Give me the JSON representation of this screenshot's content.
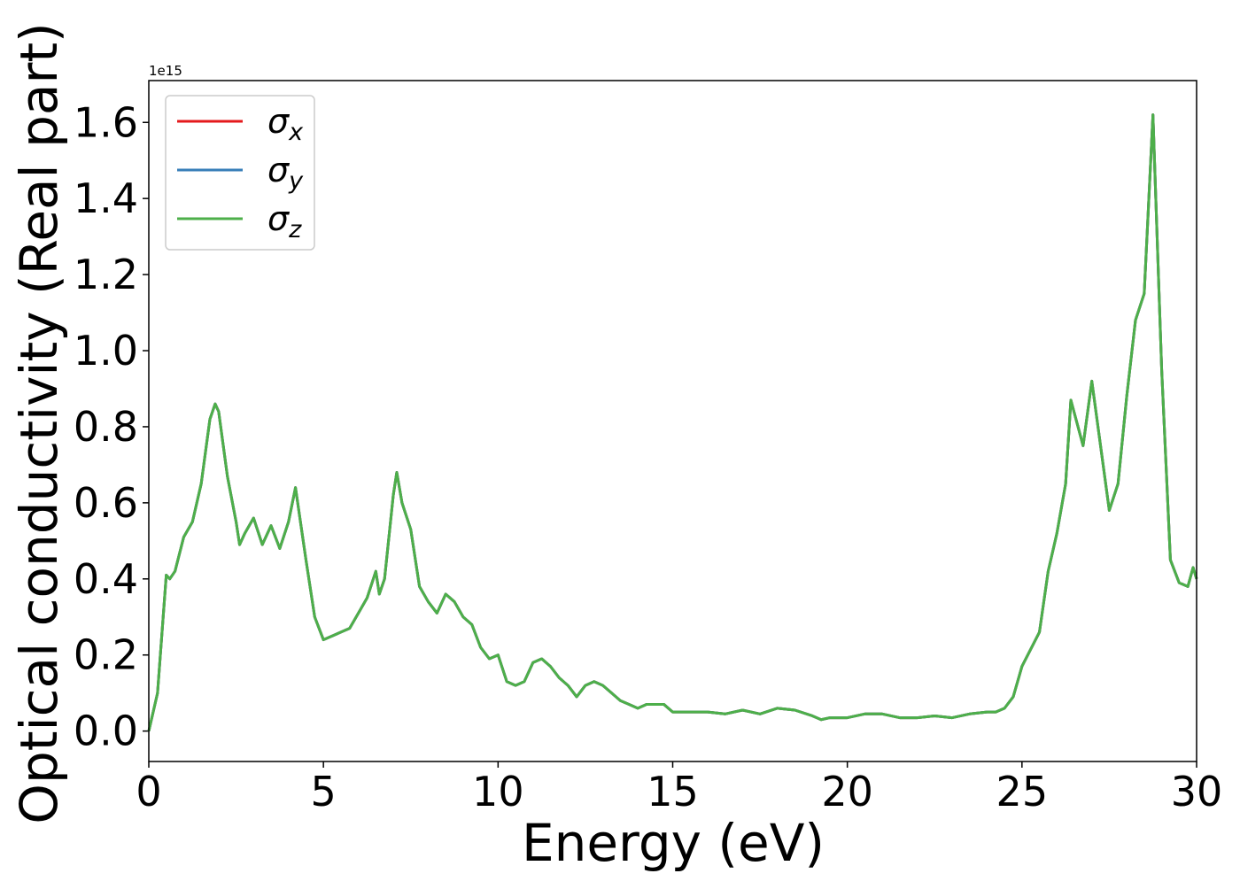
{
  "chart_data": {
    "type": "line",
    "xlabel": "Energy (eV)",
    "ylabel": "Optical conductivity (Real part)",
    "y_offset_label": "1e15",
    "xlim": [
      0,
      30
    ],
    "ylim": [
      -0.08,
      1.71
    ],
    "xticks": [
      0,
      5,
      10,
      15,
      20,
      25,
      30
    ],
    "yticks": [
      {
        "value": 0,
        "label": "0.0"
      },
      0.2,
      0.4,
      0.6,
      0.8,
      {
        "value": 1,
        "label": "1.0"
      },
      1.2,
      1.4,
      1.6
    ],
    "legend": "upper left",
    "x": [
      0,
      0.25,
      0.5,
      0.6,
      0.75,
      1.0,
      1.25,
      1.5,
      1.75,
      1.9,
      2.0,
      2.25,
      2.5,
      2.6,
      2.75,
      3.0,
      3.25,
      3.5,
      3.75,
      4.0,
      4.2,
      4.5,
      4.75,
      5.0,
      5.25,
      5.5,
      5.75,
      6.0,
      6.25,
      6.5,
      6.6,
      6.75,
      7.0,
      7.1,
      7.25,
      7.5,
      7.75,
      8.0,
      8.25,
      8.5,
      8.75,
      9.0,
      9.25,
      9.5,
      9.75,
      10.0,
      10.25,
      10.5,
      10.75,
      11.0,
      11.25,
      11.5,
      11.75,
      12.0,
      12.25,
      12.5,
      12.75,
      13.0,
      13.25,
      13.5,
      13.75,
      14.0,
      14.25,
      14.5,
      14.75,
      15.0,
      15.5,
      16.0,
      16.5,
      17.0,
      17.5,
      18.0,
      18.5,
      19.0,
      19.25,
      19.5,
      20.0,
      20.5,
      21.0,
      21.5,
      22.0,
      22.5,
      23.0,
      23.5,
      24.0,
      24.25,
      24.5,
      24.75,
      25.0,
      25.5,
      25.75,
      26.0,
      26.25,
      26.4,
      26.75,
      27.0,
      27.25,
      27.5,
      27.75,
      28.0,
      28.25,
      28.5,
      28.75,
      29.0,
      29.25,
      29.5,
      29.75,
      29.9,
      30.0
    ],
    "series": [
      {
        "name": "σx",
        "color": "#e41a1c",
        "values": [
          0,
          0.1,
          0.41,
          0.4,
          0.42,
          0.51,
          0.55,
          0.65,
          0.82,
          0.86,
          0.84,
          0.67,
          0.55,
          0.49,
          0.52,
          0.56,
          0.49,
          0.54,
          0.48,
          0.55,
          0.64,
          0.45,
          0.3,
          0.24,
          0.25,
          0.26,
          0.27,
          0.31,
          0.35,
          0.42,
          0.36,
          0.4,
          0.62,
          0.68,
          0.6,
          0.53,
          0.38,
          0.34,
          0.31,
          0.36,
          0.34,
          0.3,
          0.28,
          0.22,
          0.19,
          0.2,
          0.13,
          0.12,
          0.13,
          0.18,
          0.19,
          0.17,
          0.14,
          0.12,
          0.09,
          0.12,
          0.13,
          0.12,
          0.1,
          0.08,
          0.07,
          0.06,
          0.07,
          0.07,
          0.07,
          0.05,
          0.05,
          0.05,
          0.045,
          0.055,
          0.045,
          0.06,
          0.055,
          0.04,
          0.03,
          0.035,
          0.035,
          0.045,
          0.045,
          0.035,
          0.035,
          0.04,
          0.035,
          0.045,
          0.05,
          0.05,
          0.06,
          0.09,
          0.17,
          0.26,
          0.42,
          0.52,
          0.65,
          0.87,
          0.75,
          0.92,
          0.75,
          0.58,
          0.65,
          0.88,
          1.08,
          1.15,
          1.62,
          0.95,
          0.45,
          0.39,
          0.38,
          0.43,
          0.4
        ]
      },
      {
        "name": "σy",
        "color": "#377eb8",
        "values": [
          0,
          0.1,
          0.41,
          0.4,
          0.42,
          0.51,
          0.55,
          0.65,
          0.82,
          0.86,
          0.84,
          0.67,
          0.55,
          0.49,
          0.52,
          0.56,
          0.49,
          0.54,
          0.48,
          0.55,
          0.64,
          0.45,
          0.3,
          0.24,
          0.25,
          0.26,
          0.27,
          0.31,
          0.35,
          0.42,
          0.36,
          0.4,
          0.62,
          0.68,
          0.6,
          0.53,
          0.38,
          0.34,
          0.31,
          0.36,
          0.34,
          0.3,
          0.28,
          0.22,
          0.19,
          0.2,
          0.13,
          0.12,
          0.13,
          0.18,
          0.19,
          0.17,
          0.14,
          0.12,
          0.09,
          0.12,
          0.13,
          0.12,
          0.1,
          0.08,
          0.07,
          0.06,
          0.07,
          0.07,
          0.07,
          0.05,
          0.05,
          0.05,
          0.045,
          0.055,
          0.045,
          0.06,
          0.055,
          0.04,
          0.03,
          0.035,
          0.035,
          0.045,
          0.045,
          0.035,
          0.035,
          0.04,
          0.035,
          0.045,
          0.05,
          0.05,
          0.06,
          0.09,
          0.17,
          0.26,
          0.42,
          0.52,
          0.65,
          0.87,
          0.75,
          0.92,
          0.75,
          0.58,
          0.65,
          0.88,
          1.08,
          1.15,
          1.62,
          0.95,
          0.45,
          0.39,
          0.38,
          0.43,
          0.4
        ]
      },
      {
        "name": "σz",
        "color": "#4daf4a",
        "values": [
          0,
          0.1,
          0.41,
          0.4,
          0.42,
          0.51,
          0.55,
          0.65,
          0.82,
          0.86,
          0.84,
          0.67,
          0.55,
          0.49,
          0.52,
          0.56,
          0.49,
          0.54,
          0.48,
          0.55,
          0.64,
          0.45,
          0.3,
          0.24,
          0.25,
          0.26,
          0.27,
          0.31,
          0.35,
          0.42,
          0.36,
          0.4,
          0.62,
          0.68,
          0.6,
          0.53,
          0.38,
          0.34,
          0.31,
          0.36,
          0.34,
          0.3,
          0.28,
          0.22,
          0.19,
          0.2,
          0.13,
          0.12,
          0.13,
          0.18,
          0.19,
          0.17,
          0.14,
          0.12,
          0.09,
          0.12,
          0.13,
          0.12,
          0.1,
          0.08,
          0.07,
          0.06,
          0.07,
          0.07,
          0.07,
          0.05,
          0.05,
          0.05,
          0.045,
          0.055,
          0.045,
          0.06,
          0.055,
          0.04,
          0.03,
          0.035,
          0.035,
          0.045,
          0.045,
          0.035,
          0.035,
          0.04,
          0.035,
          0.045,
          0.05,
          0.05,
          0.06,
          0.09,
          0.17,
          0.26,
          0.42,
          0.52,
          0.65,
          0.87,
          0.75,
          0.92,
          0.75,
          0.58,
          0.65,
          0.88,
          1.08,
          1.15,
          1.62,
          0.95,
          0.45,
          0.39,
          0.38,
          0.43,
          0.4
        ]
      }
    ]
  }
}
